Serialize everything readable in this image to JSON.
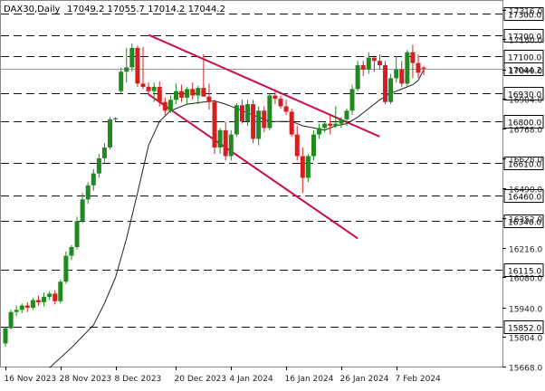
{
  "chart_data": {
    "type": "candlestick",
    "symbol": "DAX30,Daily",
    "ohlc_text": "17049.2 17055.7 17014.2 17044.2",
    "current_price": 17044.2,
    "ylim": [
      15668,
      17357
    ],
    "x_count": 100,
    "colors": {
      "up": "#1f8a1f",
      "down": "#d31f1f",
      "channel": "#cc0d4d",
      "grid": "#d2d2d2",
      "level": "#111111",
      "ma": "#222222",
      "current": "#999999"
    },
    "x_ticks": [
      {
        "i": 0,
        "label": "16 Nov 2023"
      },
      {
        "i": 10,
        "label": "28 Nov 2023"
      },
      {
        "i": 20,
        "label": "8 Dec 2023"
      },
      {
        "i": 31,
        "label": "20 Dec 2023"
      },
      {
        "i": 41,
        "label": "4 Jan 2024"
      },
      {
        "i": 51,
        "label": "16 Jan 2024"
      },
      {
        "i": 61,
        "label": "26 Jan 2024"
      },
      {
        "i": 71,
        "label": "7 Feb 2024"
      }
    ],
    "y_ticks": [
      15668.0,
      15804.0,
      15940.0,
      16080.0,
      16216.0,
      16352.0,
      16490.0,
      16628.0,
      16768.0,
      16904.0,
      17040.0,
      17180.0,
      17316.0
    ],
    "levels": [
      {
        "value": 17300.0,
        "label": "17300.0"
      },
      {
        "value": 17200.0,
        "label": "17200.0"
      },
      {
        "value": 17100.0,
        "label": "17100.0"
      },
      {
        "value": 16930.0,
        "label": "16930.0"
      },
      {
        "value": 16800.0,
        "label": "16800.0"
      },
      {
        "value": 16610.0,
        "label": "16610.0"
      },
      {
        "value": 16460.0,
        "label": "16460.0"
      },
      {
        "value": 16340.0,
        "label": "16340.0"
      },
      {
        "value": 16115.0,
        "label": "16115.0"
      },
      {
        "value": 15852.0,
        "label": "15852.0"
      }
    ],
    "channel_lines": [
      {
        "i1": 26,
        "v1": 17200,
        "i2": 68,
        "v2": 16730
      },
      {
        "i1": 26,
        "v1": 16925,
        "i2": 64,
        "v2": 16260
      }
    ],
    "candles": [
      {
        "o": 15775,
        "h": 15850,
        "l": 15760,
        "c": 15845
      },
      {
        "o": 15845,
        "h": 15930,
        "l": 15840,
        "c": 15920
      },
      {
        "o": 15920,
        "h": 15950,
        "l": 15900,
        "c": 15930
      },
      {
        "o": 15930,
        "h": 15960,
        "l": 15915,
        "c": 15950
      },
      {
        "o": 15950,
        "h": 15965,
        "l": 15920,
        "c": 15940
      },
      {
        "o": 15940,
        "h": 15985,
        "l": 15930,
        "c": 15975
      },
      {
        "o": 15975,
        "h": 15995,
        "l": 15950,
        "c": 15965
      },
      {
        "o": 15965,
        "h": 16010,
        "l": 15945,
        "c": 15990
      },
      {
        "o": 15990,
        "h": 16015,
        "l": 15975,
        "c": 16005
      },
      {
        "o": 16005,
        "h": 16020,
        "l": 15955,
        "c": 15970
      },
      {
        "o": 15970,
        "h": 16070,
        "l": 15960,
        "c": 16060
      },
      {
        "o": 16060,
        "h": 16200,
        "l": 16050,
        "c": 16180
      },
      {
        "o": 16180,
        "h": 16230,
        "l": 16160,
        "c": 16220
      },
      {
        "o": 16220,
        "h": 16360,
        "l": 16210,
        "c": 16340
      },
      {
        "o": 16340,
        "h": 16470,
        "l": 16330,
        "c": 16440
      },
      {
        "o": 16440,
        "h": 16520,
        "l": 16420,
        "c": 16505
      },
      {
        "o": 16505,
        "h": 16580,
        "l": 16480,
        "c": 16560
      },
      {
        "o": 16560,
        "h": 16650,
        "l": 16540,
        "c": 16630
      },
      {
        "o": 16630,
        "h": 16700,
        "l": 16610,
        "c": 16680
      },
      {
        "o": 16680,
        "h": 16820,
        "l": 16670,
        "c": 16810
      },
      {
        "o": 16810,
        "h": 16820,
        "l": 16800,
        "c": 16815
      },
      {
        "o": 16940,
        "h": 17050,
        "l": 16930,
        "c": 17030
      },
      {
        "o": 17030,
        "h": 17140,
        "l": 16980,
        "c": 17050
      },
      {
        "o": 17050,
        "h": 17160,
        "l": 17030,
        "c": 17140
      },
      {
        "o": 17140,
        "h": 17150,
        "l": 16960,
        "c": 16975
      },
      {
        "o": 16975,
        "h": 17145,
        "l": 16950,
        "c": 16960
      },
      {
        "o": 16960,
        "h": 16980,
        "l": 16920,
        "c": 16940
      },
      {
        "o": 16940,
        "h": 16980,
        "l": 16890,
        "c": 16960
      },
      {
        "o": 16960,
        "h": 16985,
        "l": 16870,
        "c": 16890
      },
      {
        "o": 16890,
        "h": 16910,
        "l": 16830,
        "c": 16850
      },
      {
        "o": 16850,
        "h": 16920,
        "l": 16840,
        "c": 16900
      },
      {
        "o": 16900,
        "h": 16975,
        "l": 16880,
        "c": 16940
      },
      {
        "o": 16940,
        "h": 16970,
        "l": 16890,
        "c": 16910
      },
      {
        "o": 16910,
        "h": 16960,
        "l": 16880,
        "c": 16950
      },
      {
        "o": 16950,
        "h": 16980,
        "l": 16900,
        "c": 16920
      },
      {
        "o": 16920,
        "h": 16965,
        "l": 16880,
        "c": 16955
      },
      {
        "o": 16955,
        "h": 17110,
        "l": 16920,
        "c": 16915
      },
      {
        "o": 16915,
        "h": 16975,
        "l": 16855,
        "c": 16890
      },
      {
        "o": 16890,
        "h": 16900,
        "l": 16650,
        "c": 16680
      },
      {
        "o": 16680,
        "h": 16770,
        "l": 16650,
        "c": 16760
      },
      {
        "o": 16760,
        "h": 16800,
        "l": 16620,
        "c": 16640
      },
      {
        "o": 16640,
        "h": 16760,
        "l": 16620,
        "c": 16740
      },
      {
        "o": 16740,
        "h": 16885,
        "l": 16730,
        "c": 16875
      },
      {
        "o": 16875,
        "h": 16900,
        "l": 16790,
        "c": 16800
      },
      {
        "o": 16800,
        "h": 16900,
        "l": 16780,
        "c": 16880
      },
      {
        "o": 16880,
        "h": 16900,
        "l": 16700,
        "c": 16720
      },
      {
        "o": 16720,
        "h": 16870,
        "l": 16690,
        "c": 16850
      },
      {
        "o": 16850,
        "h": 16870,
        "l": 16750,
        "c": 16770
      },
      {
        "o": 16770,
        "h": 16930,
        "l": 16760,
        "c": 16920
      },
      {
        "o": 16920,
        "h": 16950,
        "l": 16880,
        "c": 16905
      },
      {
        "o": 16905,
        "h": 16920,
        "l": 16860,
        "c": 16870
      },
      {
        "o": 16870,
        "h": 16900,
        "l": 16830,
        "c": 16845
      },
      {
        "o": 16845,
        "h": 16860,
        "l": 16730,
        "c": 16740
      },
      {
        "o": 16740,
        "h": 16780,
        "l": 16620,
        "c": 16640
      },
      {
        "o": 16640,
        "h": 16680,
        "l": 16470,
        "c": 16540
      },
      {
        "o": 16540,
        "h": 16650,
        "l": 16520,
        "c": 16640
      },
      {
        "o": 16640,
        "h": 16760,
        "l": 16620,
        "c": 16740
      },
      {
        "o": 16740,
        "h": 16790,
        "l": 16720,
        "c": 16770
      },
      {
        "o": 16770,
        "h": 16800,
        "l": 16750,
        "c": 16790
      },
      {
        "o": 16790,
        "h": 16830,
        "l": 16740,
        "c": 16780
      },
      {
        "o": 16780,
        "h": 16870,
        "l": 16770,
        "c": 16790
      },
      {
        "o": 16790,
        "h": 16820,
        "l": 16770,
        "c": 16810
      },
      {
        "o": 16810,
        "h": 16860,
        "l": 16780,
        "c": 16850
      },
      {
        "o": 16850,
        "h": 16970,
        "l": 16830,
        "c": 16950
      },
      {
        "o": 16950,
        "h": 17080,
        "l": 16940,
        "c": 17060
      },
      {
        "o": 17060,
        "h": 17080,
        "l": 17010,
        "c": 17040
      },
      {
        "o": 17040,
        "h": 17120,
        "l": 17020,
        "c": 17095
      },
      {
        "o": 17095,
        "h": 17105,
        "l": 17030,
        "c": 17080
      },
      {
        "o": 17080,
        "h": 17110,
        "l": 17040,
        "c": 17060
      },
      {
        "o": 17060,
        "h": 17080,
        "l": 16880,
        "c": 16890
      },
      {
        "o": 16890,
        "h": 17020,
        "l": 16880,
        "c": 17000
      },
      {
        "o": 17000,
        "h": 17100,
        "l": 16980,
        "c": 17040
      },
      {
        "o": 17040,
        "h": 17080,
        "l": 16960,
        "c": 16975
      },
      {
        "o": 16975,
        "h": 17130,
        "l": 16960,
        "c": 17120
      },
      {
        "o": 17120,
        "h": 17155,
        "l": 17000,
        "c": 17070
      },
      {
        "o": 17070,
        "h": 17110,
        "l": 17000,
        "c": 17025
      },
      {
        "o": 17049.2,
        "h": 17055.7,
        "l": 17014.2,
        "c": 17044.2
      }
    ],
    "moving_average": [
      {
        "i": 8,
        "v": 15662
      },
      {
        "i": 12,
        "v": 15755
      },
      {
        "i": 16,
        "v": 15860
      },
      {
        "i": 18,
        "v": 15960
      },
      {
        "i": 20,
        "v": 16080
      },
      {
        "i": 22,
        "v": 16260
      },
      {
        "i": 24,
        "v": 16470
      },
      {
        "i": 26,
        "v": 16690
      },
      {
        "i": 28,
        "v": 16800
      },
      {
        "i": 30,
        "v": 16850
      },
      {
        "i": 33,
        "v": 16880
      },
      {
        "i": 36,
        "v": 16890
      },
      {
        "i": 38,
        "v": 16895
      },
      {
        "i": 40,
        "v": 16880
      },
      {
        "i": 42,
        "v": 16860
      },
      {
        "i": 44,
        "v": 16840
      },
      {
        "i": 46,
        "v": 16820
      },
      {
        "i": 48,
        "v": 16800
      },
      {
        "i": 50,
        "v": 16800
      },
      {
        "i": 52,
        "v": 16800
      },
      {
        "i": 54,
        "v": 16780
      },
      {
        "i": 56,
        "v": 16770
      },
      {
        "i": 58,
        "v": 16760
      },
      {
        "i": 60,
        "v": 16780
      },
      {
        "i": 62,
        "v": 16790
      },
      {
        "i": 64,
        "v": 16820
      },
      {
        "i": 66,
        "v": 16860
      },
      {
        "i": 68,
        "v": 16900
      },
      {
        "i": 70,
        "v": 16930
      },
      {
        "i": 72,
        "v": 16950
      },
      {
        "i": 74,
        "v": 16970
      },
      {
        "i": 75,
        "v": 16990
      },
      {
        "i": 76,
        "v": 17040
      }
    ]
  }
}
